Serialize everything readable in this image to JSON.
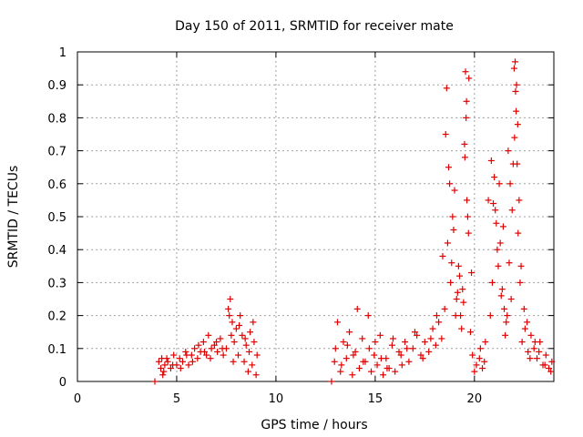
{
  "chart_data": {
    "type": "scatter",
    "title": "Day 150 of 2011, SRMTID for receiver mate",
    "xlabel": "GPS time / hours",
    "ylabel": "SRMTID / TECUs",
    "xlim": [
      0,
      24
    ],
    "ylim": [
      0,
      1
    ],
    "grid": true,
    "legend": "none",
    "x_ticks": [
      0,
      5,
      10,
      15,
      20
    ],
    "y_ticks": [
      0,
      0.1,
      0.2,
      0.3,
      0.4,
      0.5,
      0.6,
      0.7,
      0.8,
      0.9,
      1
    ],
    "x_tick_labels": [
      "0",
      "5",
      "10",
      "15",
      "20"
    ],
    "y_tick_labels": [
      "0",
      "0.1",
      "0.2",
      "0.3",
      "0.4",
      "0.5",
      "0.6",
      "0.7",
      "0.8",
      "0.9",
      "1"
    ],
    "marker_symbol": "+",
    "marker_color": "#e00000",
    "series": [
      {
        "name": "SRMTID",
        "x": [
          3.9,
          4.1,
          4.2,
          4.25,
          4.35,
          4.4,
          4.55,
          4.7,
          4.85,
          5.0,
          5.15,
          5.3,
          5.45,
          5.6,
          5.75,
          5.9,
          6.05,
          6.2,
          6.35,
          6.5,
          6.6,
          6.75,
          6.9,
          7.05,
          7.2,
          7.35,
          7.5,
          7.6,
          7.7,
          7.8,
          7.9,
          8.0,
          8.1,
          8.2,
          8.3,
          8.4,
          8.5,
          8.6,
          8.7,
          8.8,
          8.9,
          9.0,
          9.05,
          12.8,
          12.95,
          13.1,
          13.25,
          13.4,
          13.55,
          13.7,
          13.85,
          14.0,
          14.2,
          14.35,
          14.5,
          14.65,
          14.8,
          14.95,
          15.1,
          15.25,
          15.4,
          15.55,
          15.7,
          15.85,
          16.0,
          16.2,
          16.35,
          16.5,
          16.7,
          16.9,
          17.1,
          17.3,
          17.5,
          17.7,
          17.9,
          18.05,
          18.2,
          18.35,
          18.5,
          18.6,
          18.7,
          18.8,
          18.9,
          19.0,
          19.1,
          19.2,
          19.3,
          19.4,
          19.5,
          19.55,
          19.6,
          19.7,
          19.8,
          19.9,
          20.0,
          20.1,
          20.25,
          20.4,
          20.55,
          20.7,
          20.85,
          21.0,
          21.1,
          21.2,
          21.3,
          21.4,
          21.5,
          21.6,
          21.7,
          21.8,
          21.9,
          22.0,
          22.05,
          22.1,
          22.15,
          22.2,
          22.3,
          22.4,
          22.55,
          22.7,
          22.85,
          23.0,
          23.15,
          23.3,
          23.45,
          23.6,
          23.75,
          23.9,
          4.3,
          4.5,
          4.8,
          5.2,
          5.5,
          5.8,
          6.1,
          6.4,
          6.7,
          7.0,
          7.3,
          7.65,
          7.75,
          7.85,
          8.15,
          8.45,
          8.65,
          8.85,
          13.0,
          13.3,
          13.6,
          13.9,
          14.1,
          14.4,
          14.7,
          15.0,
          15.3,
          15.6,
          15.9,
          16.3,
          16.6,
          17.0,
          17.4,
          17.8,
          18.1,
          18.4,
          18.55,
          18.65,
          18.75,
          18.85,
          18.95,
          19.05,
          19.15,
          19.25,
          19.35,
          19.45,
          19.52,
          19.58,
          19.62,
          19.66,
          19.72,
          19.85,
          20.3,
          20.5,
          20.8,
          20.9,
          20.95,
          21.05,
          21.15,
          21.25,
          21.35,
          21.45,
          21.55,
          21.65,
          21.75,
          21.85,
          21.95,
          22.02,
          22.07,
          22.12,
          22.18,
          22.25,
          22.35,
          22.5,
          22.65,
          22.8,
          23.05,
          23.25,
          23.55,
          23.85
        ],
        "y": [
          0.0,
          0.06,
          0.04,
          0.07,
          0.03,
          0.05,
          0.06,
          0.04,
          0.08,
          0.05,
          0.07,
          0.06,
          0.09,
          0.05,
          0.08,
          0.1,
          0.07,
          0.09,
          0.12,
          0.08,
          0.14,
          0.1,
          0.11,
          0.09,
          0.13,
          0.08,
          0.1,
          0.22,
          0.25,
          0.18,
          0.12,
          0.16,
          0.08,
          0.2,
          0.14,
          0.06,
          0.11,
          0.03,
          0.15,
          0.05,
          0.12,
          0.02,
          0.08,
          0.0,
          0.06,
          0.18,
          0.03,
          0.12,
          0.07,
          0.15,
          0.02,
          0.09,
          0.04,
          0.13,
          0.06,
          0.2,
          0.03,
          0.08,
          0.05,
          0.14,
          0.02,
          0.07,
          0.04,
          0.11,
          0.03,
          0.09,
          0.05,
          0.12,
          0.06,
          0.1,
          0.14,
          0.08,
          0.12,
          0.09,
          0.16,
          0.11,
          0.18,
          0.13,
          0.22,
          0.89,
          0.65,
          0.3,
          0.5,
          0.58,
          0.25,
          0.35,
          0.2,
          0.28,
          0.72,
          0.94,
          0.85,
          0.45,
          0.15,
          0.08,
          0.03,
          0.05,
          0.07,
          0.04,
          0.12,
          0.55,
          0.67,
          0.62,
          0.48,
          0.35,
          0.42,
          0.28,
          0.22,
          0.18,
          0.7,
          0.6,
          0.52,
          0.95,
          0.97,
          0.82,
          0.66,
          0.45,
          0.3,
          0.12,
          0.16,
          0.09,
          0.14,
          0.1,
          0.07,
          0.12,
          0.05,
          0.08,
          0.04,
          0.06,
          0.02,
          0.07,
          0.05,
          0.04,
          0.08,
          0.06,
          0.11,
          0.09,
          0.07,
          0.12,
          0.1,
          0.2,
          0.14,
          0.06,
          0.17,
          0.13,
          0.09,
          0.18,
          0.1,
          0.05,
          0.11,
          0.08,
          0.22,
          0.06,
          0.1,
          0.12,
          0.07,
          0.04,
          0.13,
          0.08,
          0.1,
          0.15,
          0.07,
          0.13,
          0.2,
          0.38,
          0.75,
          0.42,
          0.6,
          0.36,
          0.46,
          0.2,
          0.27,
          0.32,
          0.16,
          0.24,
          0.68,
          0.8,
          0.55,
          0.5,
          0.92,
          0.33,
          0.1,
          0.06,
          0.2,
          0.3,
          0.54,
          0.52,
          0.4,
          0.6,
          0.26,
          0.47,
          0.14,
          0.2,
          0.36,
          0.25,
          0.66,
          0.74,
          0.88,
          0.9,
          0.78,
          0.55,
          0.35,
          0.22,
          0.18,
          0.07,
          0.12,
          0.09,
          0.05,
          0.03
        ]
      }
    ]
  }
}
